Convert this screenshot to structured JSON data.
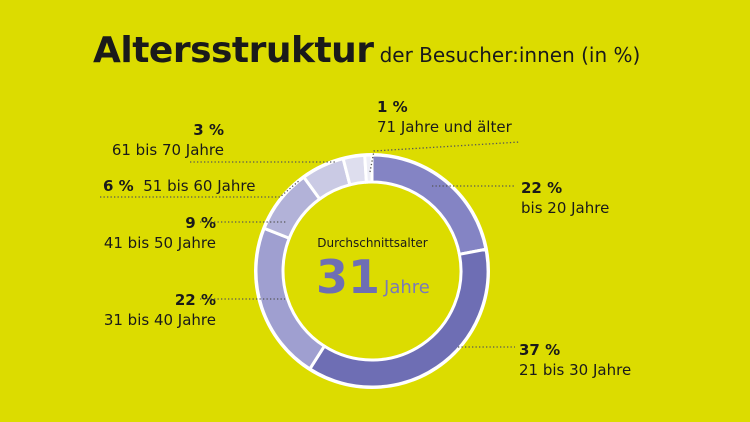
{
  "title": "Altersstruktur",
  "subtitle": "der Besucher:innen (in %)",
  "chart_data": {
    "type": "pie",
    "donut": true,
    "title": "Altersstruktur der Besucher:innen (in %)",
    "categories": [
      "bis 20 Jahre",
      "21 bis 30 Jahre",
      "31 bis 40 Jahre",
      "41 bis 50 Jahre",
      "51  bis 60 Jahre",
      "61  bis 70 Jahre",
      "71 Jahre und älter"
    ],
    "values": [
      22,
      37,
      22,
      9,
      6,
      3,
      1
    ],
    "value_labels": [
      "22 %",
      "37 %",
      "22 %",
      "9 %",
      "6 %",
      "3 %",
      "1 %"
    ],
    "colors": [
      "#8484c4",
      "#6e6eb4",
      "#9f9fd0",
      "#b2b2d8",
      "#cacae4",
      "#dedeee",
      "#eeeef6"
    ],
    "center_caption": "Durchschnittsalter",
    "center_value": "31",
    "center_unit": "Jahre"
  }
}
